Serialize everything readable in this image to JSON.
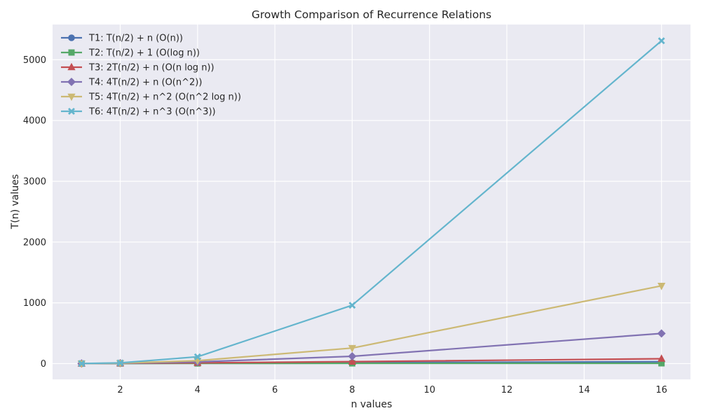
{
  "chart_data": {
    "type": "line",
    "title": "Growth Comparison of Recurrence Relations",
    "xlabel": "n values",
    "ylabel": "T(n) values",
    "xlim": [
      0.25,
      16.75
    ],
    "ylim": [
      -260,
      5580
    ],
    "xticks": [
      2,
      4,
      6,
      8,
      10,
      12,
      14,
      16
    ],
    "yticks": [
      0,
      1000,
      2000,
      3000,
      4000,
      5000
    ],
    "grid": true,
    "legend_position": "top-left",
    "x": [
      1,
      2,
      4,
      8,
      16
    ],
    "series": [
      {
        "name": "T1: T(n/2) + n (O(n))",
        "marker": "circle",
        "color": "#4C72B0",
        "values": [
          1,
          3,
          7,
          15,
          31
        ]
      },
      {
        "name": "T2: T(n/2) + 1 (O(log n))",
        "marker": "square",
        "color": "#55A868",
        "values": [
          1,
          2,
          3,
          4,
          5
        ]
      },
      {
        "name": "T3: 2T(n/2) + n (O(n log n))",
        "marker": "triangle-up",
        "color": "#C44E52",
        "values": [
          1,
          4,
          12,
          32,
          80
        ]
      },
      {
        "name": "T4: 4T(n/2) + n (O(n^2))",
        "marker": "diamond",
        "color": "#8172B2",
        "values": [
          1,
          6,
          28,
          120,
          496
        ]
      },
      {
        "name": "T5: 4T(n/2) + n^2 (O(n^2 log n))",
        "marker": "triangle-down",
        "color": "#CCB974",
        "values": [
          1,
          8,
          48,
          256,
          1280
        ]
      },
      {
        "name": "T6: 4T(n/2) + n^3 (O(n^3))",
        "marker": "x",
        "color": "#64B5CD",
        "values": [
          1,
          12,
          112,
          960,
          5312
        ]
      }
    ]
  }
}
